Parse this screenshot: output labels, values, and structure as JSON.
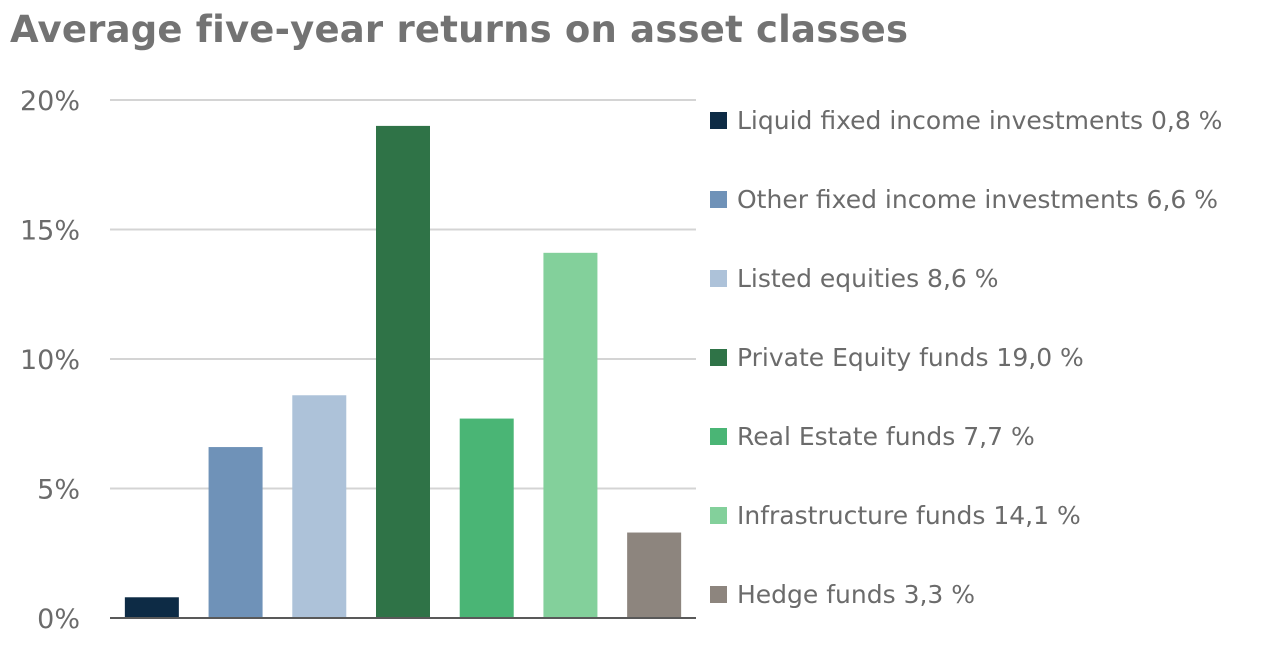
{
  "chart_data": {
    "type": "bar",
    "title": "Average five-year returns on asset classes",
    "categories": [
      "Liquid fixed income investments",
      "Other fixed income investments",
      "Listed equities",
      "Private Equity funds",
      "Real Estate funds",
      "Infrastructure funds",
      "Hedge funds"
    ],
    "values": [
      0.8,
      6.6,
      8.6,
      19.0,
      7.7,
      14.1,
      3.3
    ],
    "colors": [
      "#0d2b45",
      "#6f92b8",
      "#adc2d9",
      "#2f7347",
      "#4ab575",
      "#83d09b",
      "#8d857e"
    ],
    "legend_labels": [
      "Liquid fixed income investments 0,8 %",
      "Other fixed income investments 6,6 %",
      "Listed equities 8,6 %",
      "Private Equity funds 19,0 %",
      "Real Estate funds 7,7 %",
      "Infrastructure funds 14,1 %",
      "Hedge funds 3,3 %"
    ],
    "ylim": [
      0,
      20
    ],
    "yticks": [
      0,
      5,
      10,
      15,
      20
    ],
    "ytick_labels": [
      "0%",
      "5%",
      "10%",
      "15%",
      "20%"
    ],
    "xlabel": "",
    "ylabel": "",
    "grid": true,
    "legend_position": "right"
  }
}
